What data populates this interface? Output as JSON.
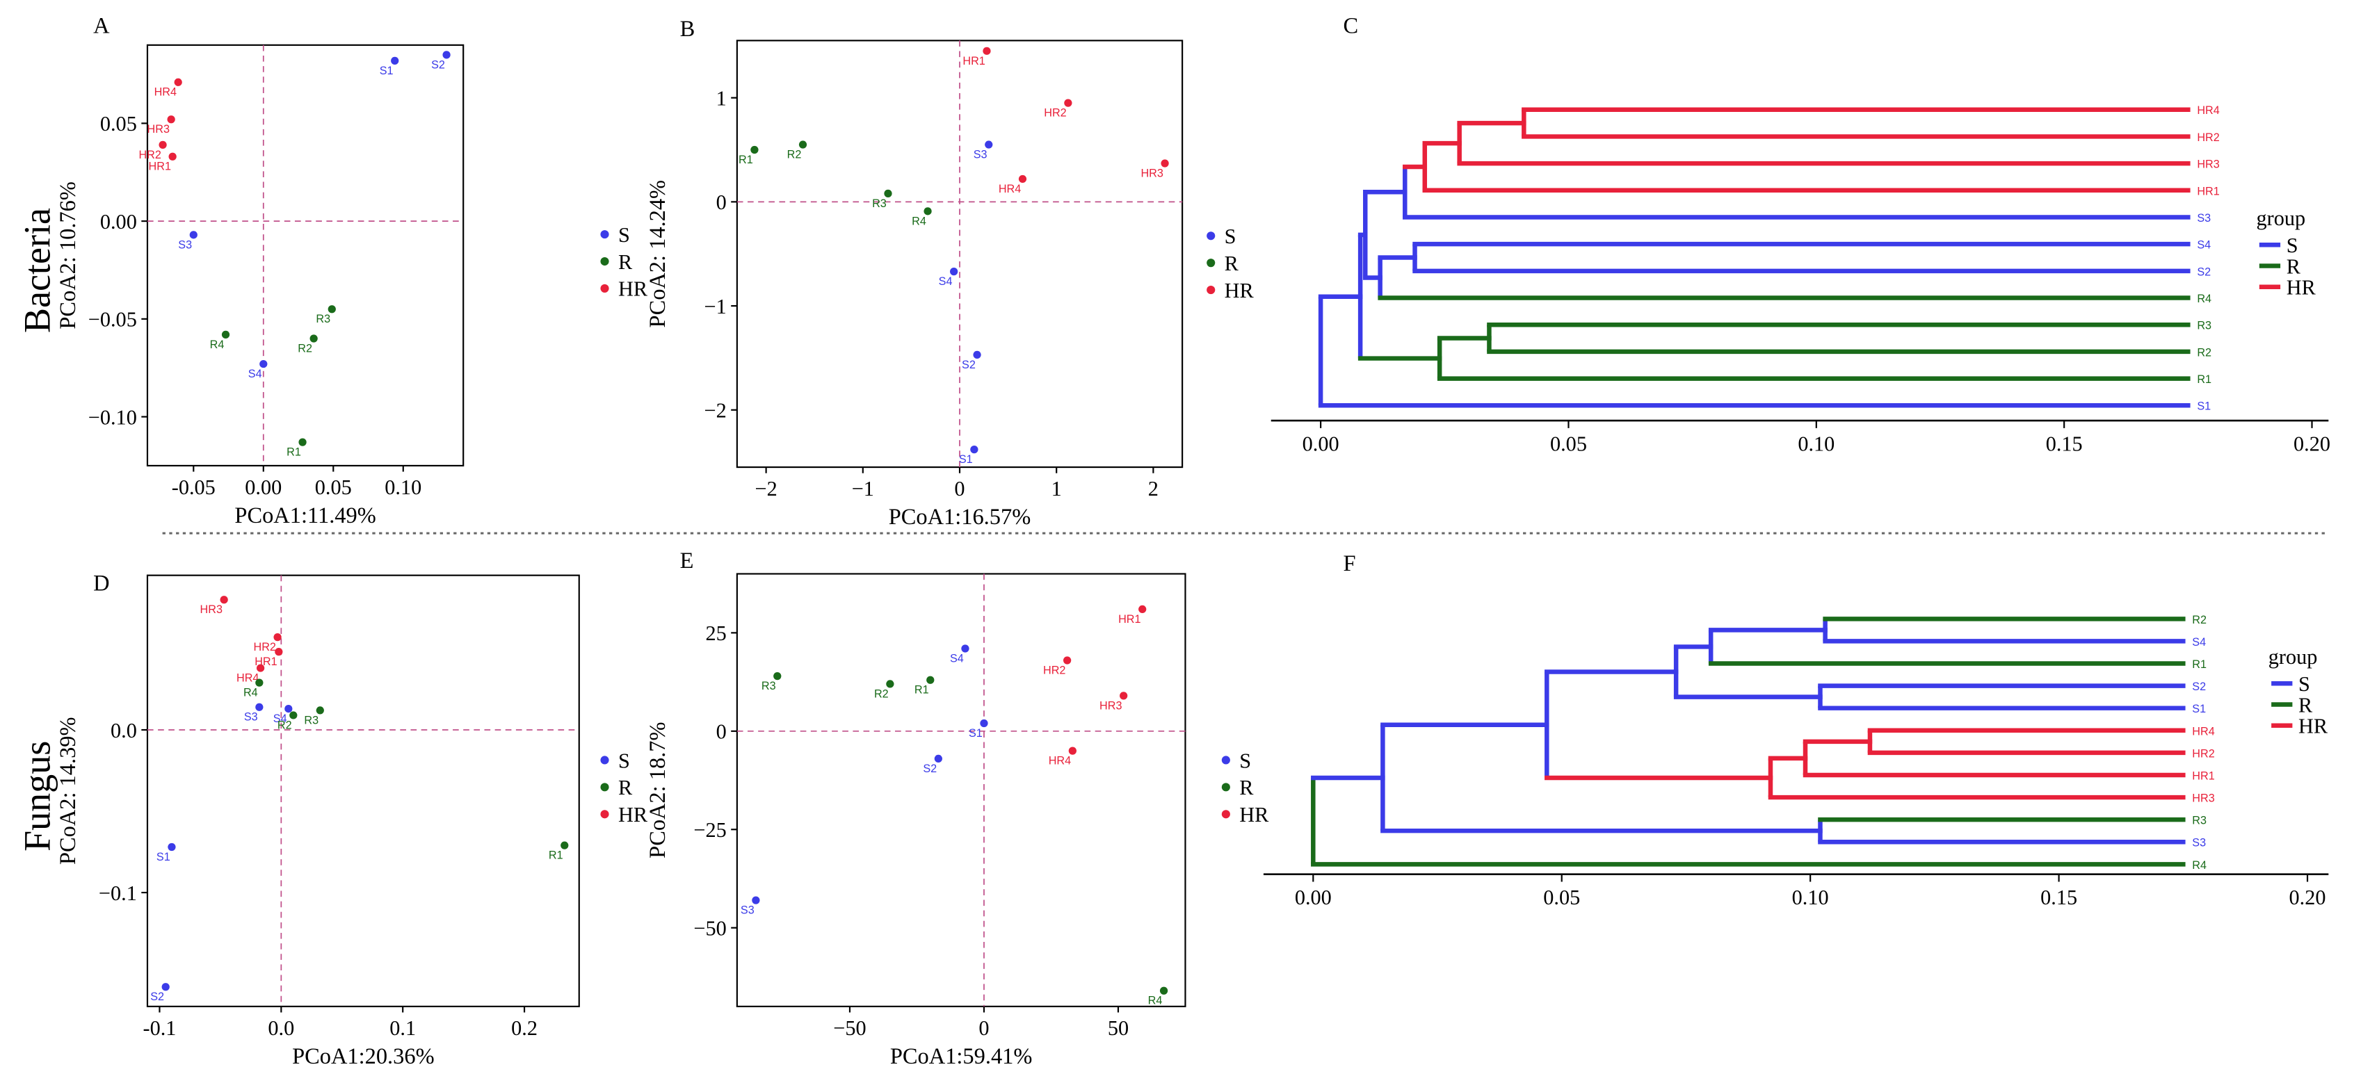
{
  "colors": {
    "S": "#3b3be8",
    "R": "#1a6b1a",
    "HR": "#e8213a",
    "guide": "#c0508a",
    "axis": "#000000"
  },
  "row_labels": {
    "bacteria": "Bacteria",
    "fungus": "Fungus"
  },
  "legend": {
    "S": "S",
    "R": "R",
    "HR": "HR"
  },
  "dendro_legend": {
    "title": "group",
    "S": "S",
    "R": "R",
    "HR": "HR"
  },
  "chart_data": [
    {
      "id": "A",
      "type": "scatter",
      "panel_label": "A",
      "xlabel": "PCoA1:11.49%",
      "ylabel": "PCoA2: 10.76%",
      "xlim": [
        -0.083,
        0.143
      ],
      "ylim": [
        -0.125,
        0.09
      ],
      "xticks": [
        -0.05,
        0.0,
        0.05,
        0.1
      ],
      "xtick_labels": [
        "-0.05",
        "0.00",
        "0.05",
        "0.10"
      ],
      "yticks": [
        -0.1,
        -0.05,
        0.0,
        0.05
      ],
      "ytick_labels": [
        "−0.10",
        "−0.05",
        "0.00",
        "0.05"
      ],
      "points": [
        {
          "label": "S1",
          "group": "S",
          "x": 0.094,
          "y": 0.082
        },
        {
          "label": "S2",
          "group": "S",
          "x": 0.131,
          "y": 0.085
        },
        {
          "label": "S3",
          "group": "S",
          "x": -0.05,
          "y": -0.007
        },
        {
          "label": "S4",
          "group": "S",
          "x": 0.0,
          "y": -0.073
        },
        {
          "label": "HR4",
          "group": "HR",
          "x": -0.061,
          "y": 0.071
        },
        {
          "label": "HR3",
          "group": "HR",
          "x": -0.066,
          "y": 0.052
        },
        {
          "label": "HR2",
          "group": "HR",
          "x": -0.072,
          "y": 0.039
        },
        {
          "label": "HR1",
          "group": "HR",
          "x": -0.065,
          "y": 0.033
        },
        {
          "label": "R4",
          "group": "R",
          "x": -0.027,
          "y": -0.058
        },
        {
          "label": "R3",
          "group": "R",
          "x": 0.049,
          "y": -0.045
        },
        {
          "label": "R2",
          "group": "R",
          "x": 0.036,
          "y": -0.06
        },
        {
          "label": "R1",
          "group": "R",
          "x": 0.028,
          "y": -0.113
        }
      ]
    },
    {
      "id": "B",
      "type": "scatter",
      "panel_label": "B",
      "xlabel": "PCoA1:16.57%",
      "ylabel": "PCoA2: 14.24%",
      "xlim": [
        -2.3,
        2.3
      ],
      "ylim": [
        -2.55,
        1.55
      ],
      "xticks": [
        -2,
        -1,
        0,
        1,
        2
      ],
      "xtick_labels": [
        "−2",
        "−1",
        "0",
        "1",
        "2"
      ],
      "yticks": [
        -2,
        -1,
        0,
        1
      ],
      "ytick_labels": [
        "−2",
        "−1",
        "0",
        "1"
      ],
      "points": [
        {
          "label": "HR1",
          "group": "HR",
          "x": 0.28,
          "y": 1.45
        },
        {
          "label": "HR2",
          "group": "HR",
          "x": 1.12,
          "y": 0.95
        },
        {
          "label": "HR3",
          "group": "HR",
          "x": 2.12,
          "y": 0.37
        },
        {
          "label": "HR4",
          "group": "HR",
          "x": 0.65,
          "y": 0.22
        },
        {
          "label": "S3",
          "group": "S",
          "x": 0.3,
          "y": 0.55
        },
        {
          "label": "S4",
          "group": "S",
          "x": -0.06,
          "y": -0.67
        },
        {
          "label": "S2",
          "group": "S",
          "x": 0.18,
          "y": -1.47
        },
        {
          "label": "S1",
          "group": "S",
          "x": 0.15,
          "y": -2.38
        },
        {
          "label": "R1",
          "group": "R",
          "x": -2.12,
          "y": 0.5
        },
        {
          "label": "R2",
          "group": "R",
          "x": -1.62,
          "y": 0.55
        },
        {
          "label": "R3",
          "group": "R",
          "x": -0.74,
          "y": 0.08
        },
        {
          "label": "R4",
          "group": "R",
          "x": -0.33,
          "y": -0.09
        }
      ]
    },
    {
      "id": "D",
      "type": "scatter",
      "panel_label": "D",
      "xlabel": "PCoA1:20.36%",
      "ylabel": "PCoA2: 14.39%",
      "xlim": [
        -0.11,
        0.245
      ],
      "ylim": [
        -0.17,
        0.095
      ],
      "xticks": [
        -0.1,
        0.0,
        0.1,
        0.2
      ],
      "xtick_labels": [
        "-0.1",
        "0.0",
        "0.1",
        "0.2"
      ],
      "yticks": [
        -0.1,
        0.0
      ],
      "ytick_labels": [
        "−0.1",
        "0.0"
      ],
      "points": [
        {
          "label": "HR3",
          "group": "HR",
          "x": -0.047,
          "y": 0.08
        },
        {
          "label": "HR2",
          "group": "HR",
          "x": -0.003,
          "y": 0.057
        },
        {
          "label": "HR1",
          "group": "HR",
          "x": -0.002,
          "y": 0.048
        },
        {
          "label": "HR4",
          "group": "HR",
          "x": -0.017,
          "y": 0.038
        },
        {
          "label": "R4",
          "group": "R",
          "x": -0.018,
          "y": 0.029
        },
        {
          "label": "S3",
          "group": "S",
          "x": -0.018,
          "y": 0.014
        },
        {
          "label": "S4",
          "group": "S",
          "x": 0.006,
          "y": 0.013
        },
        {
          "label": "R2",
          "group": "R",
          "x": 0.01,
          "y": 0.009
        },
        {
          "label": "R3",
          "group": "R",
          "x": 0.032,
          "y": 0.012
        },
        {
          "label": "R1",
          "group": "R",
          "x": 0.233,
          "y": -0.071
        },
        {
          "label": "S1",
          "group": "S",
          "x": -0.09,
          "y": -0.072
        },
        {
          "label": "S2",
          "group": "S",
          "x": -0.095,
          "y": -0.158
        }
      ]
    },
    {
      "id": "E",
      "type": "scatter",
      "panel_label": "E",
      "xlabel": "PCoA1:59.41%",
      "ylabel": "PCoA2: 18.7%",
      "xlim": [
        -92,
        75
      ],
      "ylim": [
        -70,
        40
      ],
      "xticks": [
        -50,
        0,
        50
      ],
      "xtick_labels": [
        "−50",
        "0",
        "50"
      ],
      "yticks": [
        -50,
        -25,
        0,
        25
      ],
      "ytick_labels": [
        "−50",
        "−25",
        "0",
        "25"
      ],
      "points": [
        {
          "label": "HR1",
          "group": "HR",
          "x": 59,
          "y": 31
        },
        {
          "label": "HR2",
          "group": "HR",
          "x": 31,
          "y": 18
        },
        {
          "label": "HR3",
          "group": "HR",
          "x": 52,
          "y": 9
        },
        {
          "label": "HR4",
          "group": "HR",
          "x": 33,
          "y": -5
        },
        {
          "label": "S4",
          "group": "S",
          "x": -7,
          "y": 21
        },
        {
          "label": "S1",
          "group": "S",
          "x": 0,
          "y": 2
        },
        {
          "label": "S2",
          "group": "S",
          "x": -17,
          "y": -7
        },
        {
          "label": "S3",
          "group": "S",
          "x": -85,
          "y": -43
        },
        {
          "label": "R3",
          "group": "R",
          "x": -77,
          "y": 14
        },
        {
          "label": "R2",
          "group": "R",
          "x": -35,
          "y": 12
        },
        {
          "label": "R1",
          "group": "R",
          "x": -20,
          "y": 13
        },
        {
          "label": "R4",
          "group": "R",
          "x": 67,
          "y": -66
        }
      ]
    },
    {
      "id": "C",
      "type": "dendrogram",
      "panel_label": "C",
      "xlim": [
        0,
        0.2
      ],
      "xticks": [
        0,
        0.05,
        0.1,
        0.15,
        0.2
      ],
      "xtick_labels": [
        "0.00",
        "0.05",
        "0.10",
        "0.15",
        "0.20"
      ],
      "tip_height": 0.175,
      "leaves": [
        {
          "label": "HR4",
          "group": "HR"
        },
        {
          "label": "HR2",
          "group": "HR"
        },
        {
          "label": "HR3",
          "group": "HR"
        },
        {
          "label": "HR1",
          "group": "HR"
        },
        {
          "label": "S3",
          "group": "S"
        },
        {
          "label": "S4",
          "group": "S"
        },
        {
          "label": "S2",
          "group": "S"
        },
        {
          "label": "R4",
          "group": "R"
        },
        {
          "label": "R3",
          "group": "R"
        },
        {
          "label": "R2",
          "group": "R"
        },
        {
          "label": "R1",
          "group": "R"
        },
        {
          "label": "S1",
          "group": "S"
        }
      ],
      "nodes": [
        {
          "id": "n1",
          "height": 0.041,
          "children": [
            "HR4",
            "HR2"
          ],
          "group": "HR"
        },
        {
          "id": "n2",
          "height": 0.028,
          "children": [
            "n1",
            "HR3"
          ],
          "group": "HR"
        },
        {
          "id": "n3",
          "height": 0.021,
          "children": [
            "n2",
            "HR1"
          ],
          "group": "HR"
        },
        {
          "id": "n4",
          "height": 0.017,
          "children": [
            "n3",
            "S3"
          ],
          "group": "S"
        },
        {
          "id": "n5",
          "height": 0.019,
          "children": [
            "S4",
            "S2"
          ],
          "group": "S"
        },
        {
          "id": "n6",
          "height": 0.012,
          "children": [
            "n5",
            "R4"
          ],
          "group": "S"
        },
        {
          "id": "n7",
          "height": 0.009,
          "children": [
            "n4",
            "n6"
          ],
          "group": "S"
        },
        {
          "id": "n8",
          "height": 0.034,
          "children": [
            "R3",
            "R2"
          ],
          "group": "R"
        },
        {
          "id": "n9",
          "height": 0.024,
          "children": [
            "n8",
            "R1"
          ],
          "group": "R"
        },
        {
          "id": "n10",
          "height": 0.008,
          "children": [
            "n7",
            "n9"
          ],
          "group": "S"
        },
        {
          "id": "n11",
          "height": 0.0,
          "children": [
            "n10",
            "S1"
          ],
          "group": "S"
        }
      ]
    },
    {
      "id": "F",
      "type": "dendrogram",
      "panel_label": "F",
      "xlim": [
        0,
        0.2
      ],
      "xticks": [
        0,
        0.05,
        0.1,
        0.15,
        0.2
      ],
      "xtick_labels": [
        "0.00",
        "0.05",
        "0.10",
        "0.15",
        "0.20"
      ],
      "tip_height": 0.175,
      "leaves": [
        {
          "label": "R2",
          "group": "R"
        },
        {
          "label": "S4",
          "group": "S"
        },
        {
          "label": "R1",
          "group": "R"
        },
        {
          "label": "S2",
          "group": "S"
        },
        {
          "label": "S1",
          "group": "S"
        },
        {
          "label": "HR4",
          "group": "HR"
        },
        {
          "label": "HR2",
          "group": "HR"
        },
        {
          "label": "HR1",
          "group": "HR"
        },
        {
          "label": "HR3",
          "group": "HR"
        },
        {
          "label": "R3",
          "group": "R"
        },
        {
          "label": "S3",
          "group": "S"
        },
        {
          "label": "R4",
          "group": "R"
        }
      ],
      "nodes": [
        {
          "id": "m1",
          "height": 0.103,
          "children": [
            "R2",
            "S4"
          ],
          "group": "S"
        },
        {
          "id": "m2",
          "height": 0.08,
          "children": [
            "m1",
            "R1"
          ],
          "group": "S"
        },
        {
          "id": "m3",
          "height": 0.102,
          "children": [
            "S2",
            "S1"
          ],
          "group": "S"
        },
        {
          "id": "m4",
          "height": 0.073,
          "children": [
            "m2",
            "m3"
          ],
          "group": "S"
        },
        {
          "id": "m5",
          "height": 0.112,
          "children": [
            "HR4",
            "HR2"
          ],
          "group": "HR"
        },
        {
          "id": "m6",
          "height": 0.099,
          "children": [
            "m5",
            "HR1"
          ],
          "group": "HR"
        },
        {
          "id": "m7",
          "height": 0.092,
          "children": [
            "m6",
            "HR3"
          ],
          "group": "HR"
        },
        {
          "id": "m8",
          "height": 0.047,
          "children": [
            "m4",
            "m7"
          ],
          "group": "S"
        },
        {
          "id": "m9",
          "height": 0.102,
          "children": [
            "R3",
            "S3"
          ],
          "group": "S"
        },
        {
          "id": "m10",
          "height": 0.014,
          "children": [
            "m8",
            "m9"
          ],
          "group": "S"
        },
        {
          "id": "m11",
          "height": 0.0,
          "children": [
            "m10",
            "R4"
          ],
          "group": "R"
        }
      ]
    }
  ]
}
